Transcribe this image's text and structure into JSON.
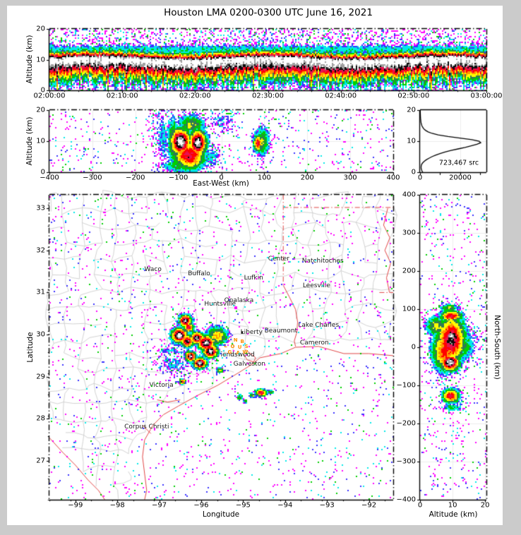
{
  "title": "Houston LMA 0200-0300 UTC June 16, 2021",
  "window": {
    "background": "#cbcbcb",
    "figure_background": "#ffffff"
  },
  "colors": {
    "ramp": [
      [
        0.03,
        "#ff00ff"
      ],
      [
        0.105,
        "#3a30ff"
      ],
      [
        0.18,
        "#00e8e8"
      ],
      [
        0.265,
        "#00cf00"
      ],
      [
        0.355,
        "#2f7a55"
      ],
      [
        0.45,
        "#ffff00"
      ],
      [
        0.555,
        "#ff9800"
      ],
      [
        0.65,
        "#ff0000"
      ],
      [
        0.745,
        "#e81150"
      ],
      [
        0.825,
        "#0a0a0a"
      ],
      [
        0.905,
        "#9f9f9f"
      ],
      [
        0.97,
        "#ffffff"
      ]
    ],
    "county_line": "#c7c7c7",
    "state_border": "#e04545",
    "grid_line": "#ededed",
    "frame": "#000000",
    "city_text": "#1a1a1a",
    "station_text": "#ff8c00"
  },
  "chart_data": [
    {
      "id": "time_height",
      "type": "heatmap",
      "kind": "time",
      "ylabel": "Altitude (km)",
      "x_range": [
        0,
        3600
      ],
      "y_range": [
        0,
        20
      ],
      "x_ticks": {
        "values": [
          0,
          600,
          1200,
          1800,
          2400,
          3000,
          3600
        ],
        "labels": [
          "02:00:00",
          "02:10:00",
          "02:20:00",
          "02:30:00",
          "02:40:00",
          "02:50:00",
          "03:00:00"
        ]
      },
      "x_minor_step": 120,
      "y_ticks": {
        "values": [
          0,
          10,
          20
        ],
        "labels": [
          "0",
          "10",
          "20"
        ]
      },
      "grid": {
        "x": false,
        "y": true
      },
      "speckle": {
        "base": 0.22,
        "gain": 2.2
      },
      "band": {
        "center_alt_km": 9.8,
        "amp": 1.02,
        "sigma_up_km": 1.7,
        "sigma_down_km": 4.0,
        "anvil": {
          "alt_km": 13.3,
          "amp": 0.24,
          "sigma_km": 1.25
        }
      }
    },
    {
      "id": "east_west",
      "type": "heatmap",
      "kind": "heat",
      "xlabel": "East-West (km)",
      "ylabel": "Altitude (km)",
      "x_range": [
        -400,
        400
      ],
      "y_range": [
        0,
        20
      ],
      "x_ticks": {
        "values": [
          -400,
          -300,
          -200,
          -100,
          0,
          100,
          200,
          300,
          400
        ],
        "labels": [
          "−400",
          "−300",
          "−200",
          "−100",
          "0",
          "100",
          "200",
          "300",
          "400"
        ]
      },
      "y_ticks": {
        "values": [
          0,
          10,
          20
        ],
        "labels": [
          "0",
          "10",
          "20"
        ]
      },
      "grid": {
        "x": true,
        "y": true
      },
      "speckle": {
        "base": 0.015,
        "gain": 3.0
      },
      "blobs": [
        [
          -95,
          9.8,
          16,
          3.0,
          1.03
        ],
        [
          -55,
          9.4,
          14,
          2.8,
          1.01
        ],
        [
          -75,
          5.5,
          26,
          3.2,
          0.8
        ],
        [
          -70,
          15.3,
          22,
          2.3,
          0.45
        ],
        [
          -112,
          10,
          9,
          5,
          0.5
        ],
        [
          -135,
          11,
          10,
          6,
          0.22
        ],
        [
          -150,
          14,
          12,
          5,
          0.12
        ],
        [
          85,
          9.3,
          7,
          2.0,
          0.78
        ],
        [
          95,
          9.8,
          12,
          3.3,
          0.45
        ],
        [
          0,
          16.5,
          22,
          2.3,
          0.18
        ],
        [
          -25,
          5,
          18,
          2.5,
          0.22
        ],
        [
          -95,
          2,
          30,
          1.5,
          0.35
        ]
      ]
    },
    {
      "id": "source_histogram",
      "type": "line",
      "annotation": "723,467 src",
      "x_range": [
        0,
        33000
      ],
      "y_range": [
        0,
        20
      ],
      "x_ticks": {
        "values": [
          0,
          20000
        ],
        "labels": [
          "0",
          "20000"
        ]
      },
      "x_minor": [
        10000,
        30000
      ],
      "y_ticks": {
        "values": [
          0,
          10,
          20
        ],
        "labels": [
          "0",
          "10",
          "20"
        ]
      },
      "grid": {
        "x": true,
        "y": true
      },
      "series": {
        "alt_km": [
          0,
          0.5,
          1,
          1.5,
          2,
          2.5,
          3,
          3.5,
          4,
          4.5,
          5,
          5.5,
          6,
          6.5,
          7,
          7.5,
          8,
          8.5,
          9,
          9.5,
          10,
          10.5,
          11,
          11.5,
          12,
          12.5,
          13,
          13.5,
          14,
          14.5,
          15,
          16,
          17,
          18,
          19,
          20
        ],
        "count": [
          1300,
          900,
          650,
          520,
          580,
          750,
          1300,
          2100,
          3100,
          4400,
          5900,
          7700,
          9900,
          12400,
          15400,
          18900,
          22400,
          25400,
          28300,
          30200,
          29400,
          25800,
          19800,
          13900,
          9000,
          6000,
          4000,
          2700,
          1800,
          1300,
          900,
          480,
          300,
          200,
          140,
          100
        ]
      }
    },
    {
      "id": "plan_view",
      "type": "heatmap",
      "kind": "map",
      "xlabel": "Longitude",
      "ylabel": "Latitude",
      "x_range": [
        -99.62,
        -91.42
      ],
      "y_range": [
        26.08,
        33.32
      ],
      "x_ticks": {
        "values": [
          -99,
          -98,
          -97,
          -96,
          -95,
          -94,
          -93,
          -92
        ],
        "labels": [
          "−99",
          "−98",
          "−97",
          "−96",
          "−95",
          "−94",
          "−93",
          "−92"
        ]
      },
      "x_minor_step": 0.5,
      "y_ticks": {
        "values": [
          27,
          28,
          29,
          30,
          31,
          32,
          33
        ],
        "labels": [
          "27",
          "28",
          "29",
          "30",
          "31",
          "32",
          "33"
        ]
      },
      "y_minor_step": 0.5,
      "grid": {
        "x": false,
        "y": false
      },
      "speckle": {
        "base": 0.0,
        "gain": 2.8
      },
      "blobs": [
        [
          -96.38,
          30.33,
          0.1,
          0.1,
          0.97
        ],
        [
          -96.3,
          30.17,
          0.08,
          0.08,
          0.8
        ],
        [
          -96.52,
          29.98,
          0.13,
          0.12,
          1.03
        ],
        [
          -96.33,
          29.84,
          0.1,
          0.1,
          0.9
        ],
        [
          -96.1,
          29.92,
          0.11,
          0.1,
          0.95
        ],
        [
          -95.88,
          29.8,
          0.14,
          0.12,
          1.0
        ],
        [
          -95.78,
          29.6,
          0.12,
          0.1,
          1.02
        ],
        [
          -96.25,
          29.48,
          0.09,
          0.08,
          0.97
        ],
        [
          -96.03,
          29.32,
          0.11,
          0.09,
          1.0
        ],
        [
          -95.62,
          29.97,
          0.17,
          0.15,
          0.6
        ],
        [
          -95.55,
          29.15,
          0.06,
          0.05,
          0.5
        ],
        [
          -96.72,
          29.6,
          0.38,
          0.09,
          0.17
        ],
        [
          -96.6,
          29.3,
          0.28,
          0.22,
          0.18
        ],
        [
          -96.45,
          28.88,
          0.05,
          0.04,
          0.85
        ],
        [
          -94.57,
          28.62,
          0.09,
          0.06,
          0.82
        ],
        [
          -94.78,
          28.56,
          0.05,
          0.04,
          0.5
        ],
        [
          -95.08,
          28.5,
          0.045,
          0.04,
          0.45
        ],
        [
          -94.33,
          28.64,
          0.05,
          0.04,
          0.4
        ],
        [
          -94.95,
          28.42,
          0.04,
          0.035,
          0.4
        ]
      ],
      "cities": [
        {
          "name": "Waco",
          "lon": -97.15,
          "lat": 31.55
        },
        {
          "name": "Buffalo",
          "lon": -96.05,
          "lat": 31.45
        },
        {
          "name": "Lufkin",
          "lon": -94.75,
          "lat": 31.35
        },
        {
          "name": "Center",
          "lon": -94.15,
          "lat": 31.8
        },
        {
          "name": "Natchitoches",
          "lon": -93.1,
          "lat": 31.75
        },
        {
          "name": "Leesville",
          "lon": -93.25,
          "lat": 31.15
        },
        {
          "name": "Onalaska",
          "lon": -95.1,
          "lat": 30.8
        },
        {
          "name": "Huntsville",
          "lon": -95.55,
          "lat": 30.72
        },
        {
          "name": "Liberty",
          "lon": -94.8,
          "lat": 30.05
        },
        {
          "name": "Beaumont",
          "lon": -94.1,
          "lat": 30.08
        },
        {
          "name": "Lake Charles",
          "lon": -93.2,
          "lat": 30.22
        },
        {
          "name": "Cameron",
          "lon": -93.3,
          "lat": 29.8
        },
        {
          "name": "Friendswood",
          "lon": -95.2,
          "lat": 29.52
        },
        {
          "name": "Galveston",
          "lon": -94.85,
          "lat": 29.3
        },
        {
          "name": "Victoria",
          "lon": -96.95,
          "lat": 28.8
        },
        {
          "name": "Corpus Christi",
          "lon": -97.3,
          "lat": 27.8
        }
      ],
      "stations": [
        {
          "id": "T",
          "lon": -95.35,
          "lat": 29.88
        },
        {
          "id": "N",
          "lon": -95.18,
          "lat": 29.86
        },
        {
          "id": "B",
          "lon": -95.02,
          "lat": 29.84
        },
        {
          "id": "L",
          "lon": -95.42,
          "lat": 29.74
        },
        {
          "id": "O",
          "lon": -95.25,
          "lat": 29.72
        },
        {
          "id": "U",
          "lon": -95.08,
          "lat": 29.7
        },
        {
          "id": "S",
          "lon": -94.92,
          "lat": 29.72
        },
        {
          "id": "G",
          "lon": -95.32,
          "lat": 29.58
        },
        {
          "id": "A",
          "lon": -95.12,
          "lat": 29.56
        },
        {
          "id": "W",
          "lon": -94.95,
          "lat": 29.58
        }
      ],
      "markers": [
        {
          "glyph": "▾",
          "lon": -95.02,
          "lat": 30.06
        }
      ],
      "borders": [
        {
          "style": "dashdot",
          "points": [
            [
              -94.043,
              33.32
            ],
            [
              -94.043,
              31.17
            ]
          ]
        },
        {
          "style": "dashdot",
          "points": [
            [
              -94.043,
              33.019
            ],
            [
              -91.42,
              33.019
            ]
          ]
        },
        {
          "style": "dashdot",
          "points": [
            [
              -91.75,
              31.0
            ],
            [
              -91.42,
              31.0
            ]
          ]
        },
        {
          "style": "solid",
          "points": [
            [
              -94.043,
              31.17
            ],
            [
              -93.9,
              30.9
            ],
            [
              -93.75,
              30.6
            ],
            [
              -93.7,
              30.3
            ],
            [
              -93.72,
              30.05
            ],
            [
              -93.78,
              29.85
            ],
            [
              -93.75,
              29.72
            ]
          ]
        },
        {
          "style": "solid",
          "points": [
            [
              -91.55,
              33.0
            ],
            [
              -91.65,
              32.6
            ],
            [
              -91.5,
              32.3
            ],
            [
              -91.62,
              32.0
            ],
            [
              -91.48,
              31.7
            ],
            [
              -91.58,
              31.35
            ],
            [
              -91.51,
              31.0
            ]
          ]
        },
        {
          "style": "solid",
          "points": [
            [
              -91.42,
              29.5
            ],
            [
              -92.0,
              29.55
            ],
            [
              -92.6,
              29.55
            ],
            [
              -93.2,
              29.72
            ],
            [
              -93.75,
              29.7
            ],
            [
              -94.1,
              29.55
            ],
            [
              -94.6,
              29.45
            ],
            [
              -94.78,
              29.3
            ],
            [
              -95.1,
              29.1
            ],
            [
              -95.6,
              28.8
            ],
            [
              -96.1,
              28.55
            ],
            [
              -96.55,
              28.3
            ],
            [
              -96.9,
              28.1
            ],
            [
              -97.15,
              27.85
            ],
            [
              -97.35,
              27.5
            ],
            [
              -97.4,
              27.1
            ],
            [
              -97.35,
              26.7
            ],
            [
              -97.3,
              26.3
            ],
            [
              -97.35,
              26.08
            ]
          ]
        },
        {
          "style": "solid",
          "points": [
            [
              -95.0,
              29.55
            ],
            [
              -94.9,
              29.4
            ],
            [
              -94.75,
              29.35
            ],
            [
              -94.7,
              29.45
            ],
            [
              -94.95,
              29.65
            ]
          ]
        },
        {
          "style": "solid",
          "points": [
            [
              -97.05,
              28.45
            ],
            [
              -96.8,
              28.4
            ],
            [
              -96.5,
              28.45
            ]
          ]
        },
        {
          "style": "solid",
          "points": [
            [
              -97.4,
              27.85
            ],
            [
              -97.2,
              27.65
            ]
          ]
        },
        {
          "style": "solid",
          "points": [
            [
              -99.62,
              27.55
            ],
            [
              -99.3,
              27.2
            ],
            [
              -99.0,
              26.9
            ],
            [
              -98.7,
              26.55
            ],
            [
              -98.45,
              26.3
            ],
            [
              -98.3,
              26.08
            ]
          ]
        }
      ]
    },
    {
      "id": "north_south",
      "type": "heatmap",
      "kind": "heat",
      "xlabel": "Altitude (km)",
      "ylabel_right": "North-South (km)",
      "x_range": [
        0,
        20.4
      ],
      "y_range": [
        -400,
        400
      ],
      "x_ticks": {
        "values": [
          0,
          10,
          20
        ],
        "labels": [
          "0",
          "10",
          "20"
        ]
      },
      "y_ticks": {
        "values": [
          -400,
          -300,
          -200,
          -100,
          0,
          100,
          200,
          300,
          400
        ],
        "labels": [
          "−400",
          "−300",
          "−200",
          "−100",
          "0",
          "100",
          "200",
          "300",
          "400"
        ]
      },
      "grid": {
        "x": true,
        "y": true
      },
      "speckle": {
        "base": 0.015,
        "gain": 3.0
      },
      "blobs": [
        [
          9.6,
          20,
          3.0,
          42,
          0.88
        ],
        [
          9.8,
          30,
          1.8,
          13,
          1.03
        ],
        [
          9.2,
          -40,
          2.0,
          15,
          1.02
        ],
        [
          9.6,
          82,
          2.3,
          10,
          0.8
        ],
        [
          7.6,
          -8,
          2.6,
          38,
          0.72
        ],
        [
          13,
          5,
          2.6,
          32,
          0.35
        ],
        [
          9.5,
          -128,
          1.8,
          13,
          0.78
        ],
        [
          10,
          -158,
          2.2,
          8,
          0.3
        ],
        [
          5,
          55,
          2.2,
          18,
          0.5
        ],
        [
          9,
          103,
          1.8,
          7,
          0.45
        ],
        [
          16,
          20,
          2.5,
          25,
          0.15
        ]
      ]
    }
  ]
}
